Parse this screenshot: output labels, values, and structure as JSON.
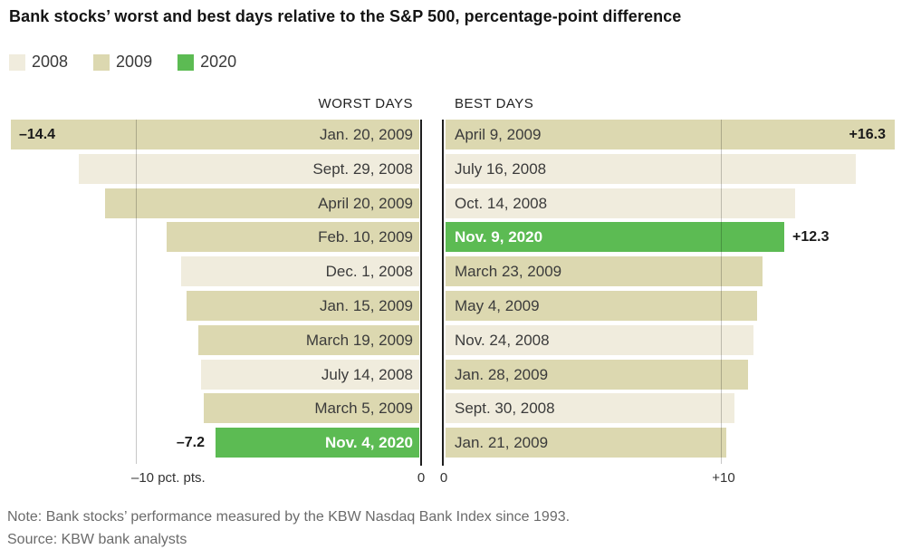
{
  "title": "Bank stocks’ worst and best days relative to the S&P 500, percentage-point difference",
  "legend": [
    {
      "label": "2008",
      "color": "#f0ecdd"
    },
    {
      "label": "2009",
      "color": "#dcd8b0"
    },
    {
      "label": "2020",
      "color": "#5cbb53"
    }
  ],
  "note": "Note: Bank stocks’ performance measured by the KBW Nasdaq Bank Index since 1993.",
  "source": "Source: KBW bank analysts",
  "chart_data": {
    "type": "bar",
    "orientation": "horizontal",
    "unit": "percentage-point difference vs. S&P 500",
    "year_colors": {
      "2008": "#f0ecdd",
      "2009": "#dcd8b0",
      "2020": "#5cbb53"
    },
    "panels": [
      {
        "title": "WORST DAYS",
        "direction": "left",
        "xlim": [
          -16,
          0
        ],
        "axis_ticks": [
          "–10 pct. pts.",
          "0"
        ],
        "gridline_value": -10,
        "bars": [
          {
            "date": "Jan. 20, 2009",
            "year": "2009",
            "value": -14.4,
            "value_label": "–14.4",
            "value_label_position": "inside-end"
          },
          {
            "date": "Sept. 29, 2008",
            "year": "2008",
            "value": -12.0
          },
          {
            "date": "April 20, 2009",
            "year": "2009",
            "value": -11.1
          },
          {
            "date": "Feb. 10, 2009",
            "year": "2009",
            "value": -8.9
          },
          {
            "date": "Dec. 1, 2008",
            "year": "2008",
            "value": -8.4
          },
          {
            "date": "Jan. 15, 2009",
            "year": "2009",
            "value": -8.2
          },
          {
            "date": "March 19, 2009",
            "year": "2009",
            "value": -7.8
          },
          {
            "date": "July 14, 2008",
            "year": "2008",
            "value": -7.7
          },
          {
            "date": "March 5, 2009",
            "year": "2009",
            "value": -7.6
          },
          {
            "date": "Nov. 4, 2020",
            "year": "2020",
            "value": -7.2,
            "value_label": "–7.2",
            "value_label_position": "outside-end"
          }
        ]
      },
      {
        "title": "BEST DAYS",
        "direction": "right",
        "xlim": [
          0,
          17.5
        ],
        "axis_ticks": [
          "0",
          "+10"
        ],
        "gridline_value": 10,
        "bars": [
          {
            "date": "April 9, 2009",
            "year": "2009",
            "value": 16.3,
            "value_label": "+16.3",
            "value_label_position": "inside-end"
          },
          {
            "date": "July 16, 2008",
            "year": "2008",
            "value": 14.9
          },
          {
            "date": "Oct. 14, 2008",
            "year": "2008",
            "value": 12.7
          },
          {
            "date": "Nov. 9, 2020",
            "year": "2020",
            "value": 12.3,
            "value_label": "+12.3",
            "value_label_position": "outside-end"
          },
          {
            "date": "March 23, 2009",
            "year": "2009",
            "value": 11.5
          },
          {
            "date": "May 4, 2009",
            "year": "2009",
            "value": 11.3
          },
          {
            "date": "Nov. 24, 2008",
            "year": "2008",
            "value": 11.2
          },
          {
            "date": "Jan. 28, 2009",
            "year": "2009",
            "value": 11.0
          },
          {
            "date": "Sept. 30, 2008",
            "year": "2008",
            "value": 10.5
          },
          {
            "date": "Jan. 21, 2009",
            "year": "2009",
            "value": 10.2
          }
        ]
      }
    ]
  }
}
